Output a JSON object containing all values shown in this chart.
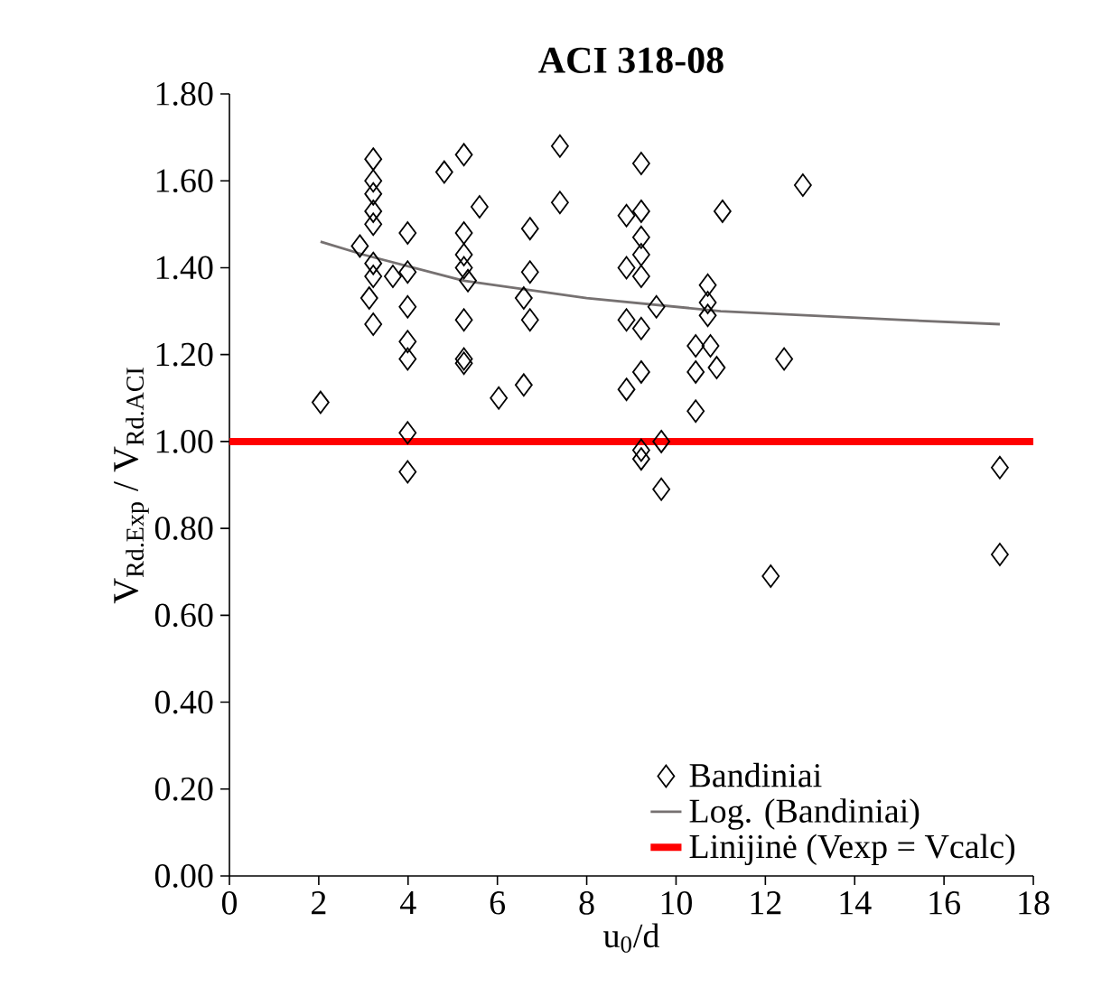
{
  "chart_data": {
    "type": "scatter",
    "title": "ACI 318-08",
    "xlabel": "u$_{0}$/d",
    "ylabel": "V$_{Rd.Exp}$ / V$_{Rd.ACI}$",
    "xlim": [
      0,
      18
    ],
    "ylim": [
      0,
      1.8
    ],
    "xticks": [
      0,
      2,
      4,
      6,
      8,
      10,
      12,
      14,
      16,
      18
    ],
    "yticks": [
      {
        "value": 0,
        "label": "0.00"
      },
      {
        "value": 0.2,
        "label": "0.20"
      },
      {
        "value": 0.4,
        "label": "0.40"
      },
      {
        "value": 0.6,
        "label": "0.60"
      },
      {
        "value": 0.8,
        "label": "0.80"
      },
      {
        "value": 1.0,
        "label": "1.00"
      },
      {
        "value": 1.2,
        "label": "1.20"
      },
      {
        "value": 1.4,
        "label": "1.40"
      },
      {
        "value": 1.6,
        "label": "1.60"
      },
      {
        "value": 1.8,
        "label": "1.80"
      }
    ],
    "grid": false,
    "legend": "bottom right",
    "series": [
      {
        "name": "Bandiniai",
        "type": "scatter",
        "marker": "diamond",
        "color": "#000000",
        "x": [
          2.04,
          3.22,
          3.22,
          3.22,
          3.22,
          3.22,
          2.92,
          3.22,
          3.22,
          3.13,
          3.22,
          3.66,
          3.99,
          3.99,
          3.99,
          3.99,
          3.99,
          3.99,
          3.99,
          4.81,
          5.25,
          5.6,
          5.25,
          5.25,
          5.25,
          5.34,
          5.25,
          5.25,
          5.25,
          6.03,
          6.59,
          6.73,
          6.73,
          6.59,
          6.73,
          7.4,
          7.4,
          9.22,
          8.89,
          9.22,
          9.22,
          9.22,
          8.89,
          9.22,
          9.56,
          8.89,
          9.22,
          9.22,
          8.89,
          9.67,
          9.22,
          9.22,
          9.67,
          10.71,
          10.71,
          10.71,
          10.44,
          10.77,
          10.44,
          10.91,
          10.44,
          11.04,
          12.42,
          12.84,
          12.12,
          17.25,
          17.25
        ],
        "values": [
          1.09,
          1.65,
          1.6,
          1.57,
          1.53,
          1.5,
          1.45,
          1.41,
          1.38,
          1.33,
          1.27,
          1.38,
          1.48,
          1.39,
          1.31,
          1.23,
          1.19,
          1.02,
          0.93,
          1.62,
          1.66,
          1.54,
          1.48,
          1.43,
          1.4,
          1.37,
          1.28,
          1.19,
          1.18,
          1.1,
          1.13,
          1.49,
          1.39,
          1.33,
          1.28,
          1.68,
          1.55,
          1.64,
          1.52,
          1.53,
          1.47,
          1.43,
          1.4,
          1.38,
          1.31,
          1.28,
          1.26,
          1.16,
          1.12,
          1.0,
          0.98,
          0.96,
          0.89,
          1.36,
          1.32,
          1.29,
          1.22,
          1.22,
          1.16,
          1.17,
          1.07,
          1.53,
          1.19,
          1.59,
          0.69,
          0.94,
          0.74
        ]
      },
      {
        "name": "Log. (Bandiniai)",
        "type": "line",
        "color": "#767171",
        "line_style": "solid",
        "x": [
          2.04,
          3,
          5.25,
          8,
          11,
          15,
          17.25
        ],
        "values": [
          1.46,
          1.43,
          1.37,
          1.33,
          1.3,
          1.28,
          1.27
        ]
      }
    ],
    "ref_lines": [
      {
        "axis": "y",
        "value": 1.0,
        "label": "Linijinė (Vexp = Vcalc)",
        "color": "#ff0000",
        "line_style": "solid"
      }
    ]
  }
}
